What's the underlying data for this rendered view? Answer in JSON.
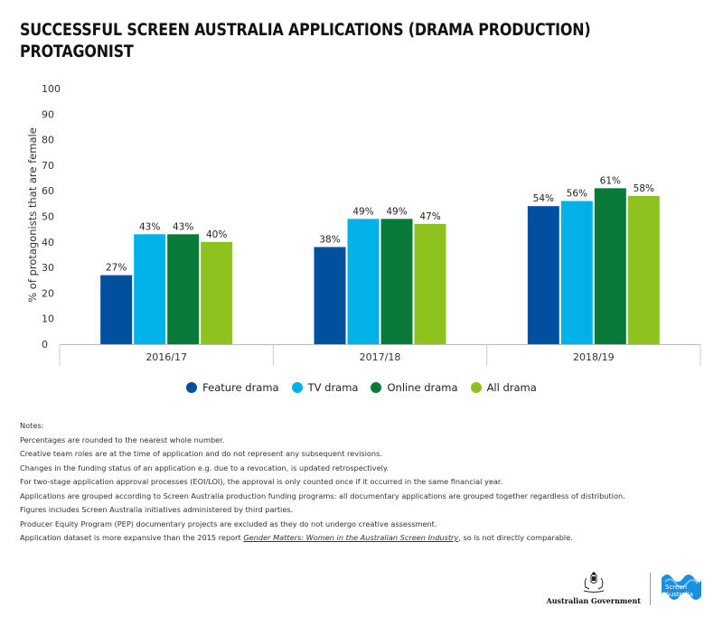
{
  "title_lines": [
    "SUCCESSFUL SCREEN AUSTRALIA APPLICATIONS (DRAMA PRODUCTION)",
    "PROTAGONIST"
  ],
  "colors": {
    "feature_drama": "#0050a0",
    "tv_drama": "#00b2e8",
    "online_drama": "#0a7a3a",
    "all_drama": "#8dc21f"
  },
  "chart_data": {
    "type": "bar",
    "title": "SUCCESSFUL SCREEN AUSTRALIA APPLICATIONS (DRAMA PRODUCTION) PROTAGONIST",
    "ylabel": "% of protagonists that are female",
    "xlabel": "",
    "ylim": [
      0,
      100
    ],
    "yticks": [
      0,
      10,
      20,
      30,
      40,
      50,
      60,
      70,
      80,
      90,
      100
    ],
    "categories": [
      "2016/17",
      "2017/18",
      "2018/19"
    ],
    "series": [
      {
        "name": "Feature drama",
        "values": [
          27,
          38,
          54
        ],
        "labels": [
          "27%",
          "38%",
          "54%"
        ]
      },
      {
        "name": "TV drama",
        "values": [
          43,
          49,
          56
        ],
        "labels": [
          "43%",
          "49%",
          "56%"
        ]
      },
      {
        "name": "Online drama",
        "values": [
          43,
          49,
          61
        ],
        "labels": [
          "43%",
          "49%",
          "61%"
        ]
      },
      {
        "name": "All drama",
        "values": [
          40,
          47,
          58
        ],
        "labels": [
          "40%",
          "47%",
          "58%"
        ]
      }
    ],
    "grid": false,
    "legend": "bottom-center"
  },
  "notes": {
    "heading": "Notes:",
    "lines": [
      "Percentages are rounded to the nearest whole number.",
      "Creative team roles are at the time of application and do not represent any subsequent revisions.",
      "Changes in the funding status of an application e.g. due to a revocation, is updated retrospectively.",
      "For two-stage application approval processes (EOI/LOI), the approval is only counted once if it occurred in the same financial year.",
      "Applications are grouped according to Screen Australia production funding programs: all documentary applications are grouped together regardless of distribution.",
      "Figures includes Screen Australia initiatives administered by third parties.",
      "Producer Equity Program (PEP) documentary projects are excluded as they do not undergo creative assessment."
    ],
    "last_prefix": "Application dataset is more expansive than the 2015 report ",
    "last_link": "Gender Matters: Women in the Australian Screen Industry",
    "last_suffix": ", so is not directly comparable."
  },
  "logos": {
    "government": "Australian Government",
    "screen_australia_line1": "Screen",
    "screen_australia_line2": "Australia"
  }
}
